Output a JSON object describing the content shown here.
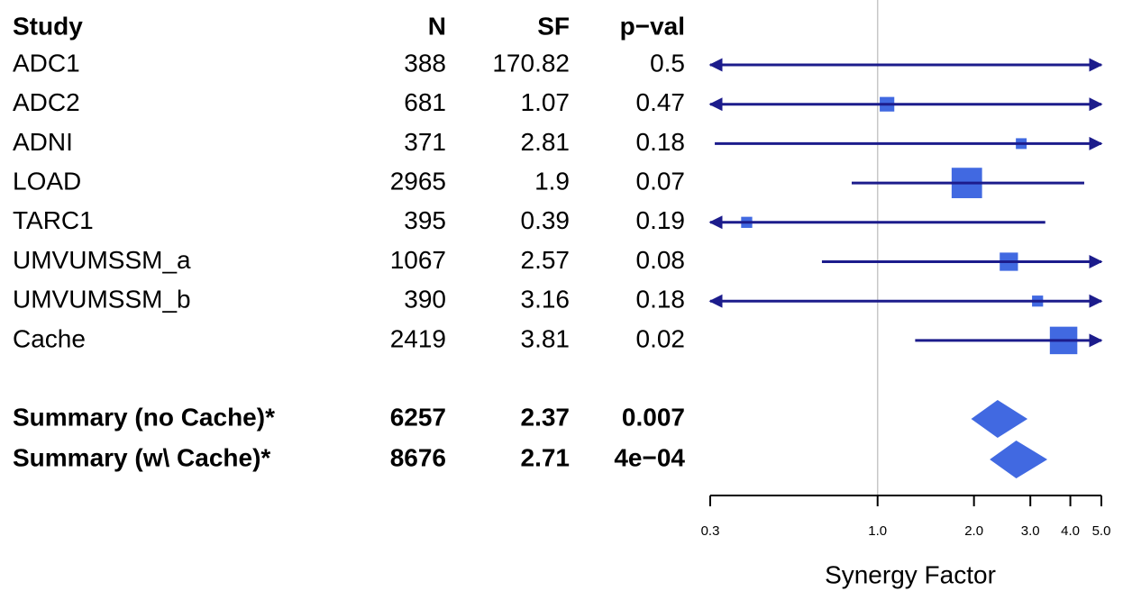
{
  "chart_data": {
    "type": "forest",
    "columns": [
      "Study",
      "N",
      "SF",
      "p−val"
    ],
    "studies": [
      "ADC1",
      "ADC2",
      "ADNI",
      "LOAD",
      "TARC1",
      "UMVUMSSM_a",
      "UMVUMSSM_b",
      "Cache"
    ],
    "n": [
      388,
      681,
      371,
      2965,
      395,
      1067,
      390,
      2419
    ],
    "values": [
      170.82,
      1.07,
      2.81,
      1.9,
      0.39,
      2.57,
      3.16,
      3.81
    ],
    "ci_lower": [
      0.2,
      0.25,
      0.31,
      0.83,
      0.2,
      0.67,
      0.2,
      1.31
    ],
    "ci_upper": [
      1000,
      6,
      8,
      4.42,
      3.34,
      7,
      7,
      6
    ],
    "p_values": [
      "0.5",
      "0.47",
      "0.18",
      "0.07",
      "0.19",
      "0.08",
      "0.18",
      "0.02"
    ],
    "summary": {
      "studies": [
        "Summary (no Cache)*",
        "Summary (w\\ Cache)*"
      ],
      "n": [
        6257,
        8676
      ],
      "values": [
        2.37,
        2.71
      ],
      "ci_lower": [
        1.96,
        2.24
      ],
      "ci_upper": [
        2.94,
        3.39
      ],
      "p_values": [
        "0.007",
        "4e−04"
      ]
    },
    "xlabel": "Synergy Factor",
    "xlim": [
      0.3,
      5.0
    ],
    "xticks": [
      {
        "value": 0.3,
        "label": "0.3"
      },
      {
        "value": 1.0,
        "label": "1.0"
      },
      {
        "value": 2.0,
        "label": "2.0"
      },
      {
        "value": 3.0,
        "label": "3.0"
      },
      {
        "value": 4.0,
        "label": "4.0"
      },
      {
        "value": 5.0,
        "label": "5.0"
      }
    ],
    "log_x": true,
    "reference": 1,
    "line_color": "#1c1c8c",
    "marker_color": "#4169e1"
  }
}
